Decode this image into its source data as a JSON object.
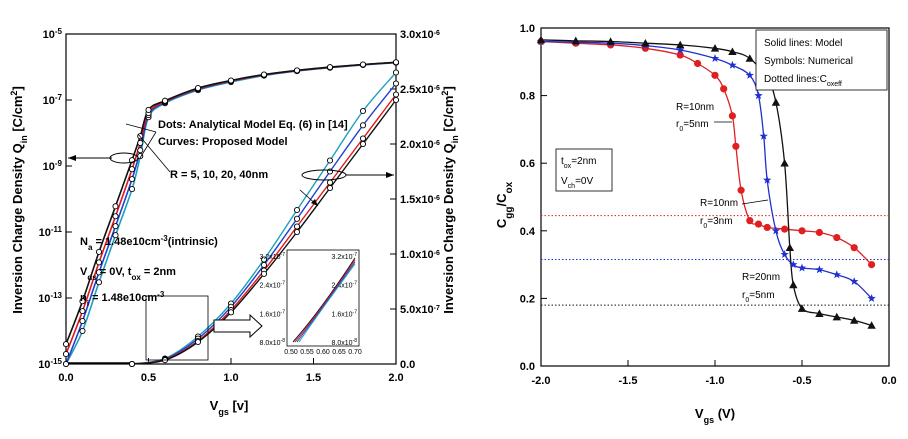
{
  "chart_data": [
    {
      "type": "line",
      "panel": "left",
      "xlabel": "V_gs [v]",
      "ylabel_left": "Inversion Charge Density Q_in [C/cm^2]",
      "ylabel_right": "Inversion Charge Density Q_in [C/cm^2]",
      "xlim": [
        0.0,
        2.0
      ],
      "ylim_left": [
        1e-15,
        1e-05
      ],
      "yscale_left": "log",
      "ylim_right": [
        0,
        3e-06
      ],
      "yscale_right": "linear",
      "x_ticks": [
        "0.0",
        "0.5",
        "1.0",
        "1.5",
        "2.0"
      ],
      "y_ticks_left": [
        "10^-15",
        "10^-13",
        "10^-11",
        "10^-9",
        "10^-7",
        "10^-5"
      ],
      "y_ticks_right": [
        "0.0",
        "5.0x10^-7",
        "1.0x10^-6",
        "1.5x10^-6",
        "2.0x10^-6",
        "2.5x10^-6",
        "3.0x10^-6"
      ],
      "annotations": [
        "Dots: Analytical Model Eq. (6) in [14]",
        "Curves: Proposed Model",
        "R = 5, 10, 20, 40nm",
        "N_a = 1.48e10cm^-3 (intrinsic)",
        "V_ds = 0V, t_ox = 2nm",
        "n_i = 1.48e10cm^-3"
      ],
      "colors": {
        "R=5nm": "#1f9fbf",
        "R=10nm": "#2040d0",
        "R=20nm": "#e01818",
        "R=40nm": "#111111"
      },
      "series_log": [
        {
          "name": "R=5nm",
          "x": [
            0.0,
            0.1,
            0.2,
            0.3,
            0.4,
            0.45,
            0.5,
            0.6,
            0.8,
            1.0,
            1.2,
            1.4,
            1.6,
            1.8,
            2.0
          ],
          "y": [
            5e-16,
            1e-14,
            3e-13,
            8e-12,
            2e-10,
            2e-09,
            3e-08,
            8e-08,
            2e-07,
            3.5e-07,
            5.5e-07,
            7.5e-07,
            9.5e-07,
            1.15e-06,
            1.35e-06
          ]
        },
        {
          "name": "R=10nm",
          "x": [
            0.0,
            0.1,
            0.2,
            0.3,
            0.4,
            0.45,
            0.5,
            0.6,
            0.8,
            1.0,
            1.2,
            1.4,
            1.6,
            1.8,
            2.0
          ],
          "y": [
            1e-15,
            2e-14,
            6e-13,
            1.5e-11,
            4e-10,
            3e-09,
            3.5e-08,
            8.5e-08,
            2.1e-07,
            3.7e-07,
            5.7e-07,
            7.7e-07,
            9.7e-07,
            1.17e-06,
            1.37e-06
          ]
        },
        {
          "name": "R=20nm",
          "x": [
            0.0,
            0.1,
            0.2,
            0.3,
            0.4,
            0.45,
            0.5,
            0.6,
            0.8,
            1.0,
            1.2,
            1.4,
            1.6,
            1.8,
            2.0
          ],
          "y": [
            2e-15,
            4e-14,
            1.2e-12,
            3e-11,
            8e-10,
            5e-09,
            4e-08,
            9e-08,
            2.2e-07,
            3.8e-07,
            5.8e-07,
            7.8e-07,
            9.8e-07,
            1.18e-06,
            1.38e-06
          ]
        },
        {
          "name": "R=40nm",
          "x": [
            0.0,
            0.1,
            0.2,
            0.3,
            0.4,
            0.45,
            0.5,
            0.6,
            0.8,
            1.0,
            1.2,
            1.4,
            1.6,
            1.8,
            2.0
          ],
          "y": [
            4e-15,
            8e-14,
            2.5e-12,
            6e-11,
            1.5e-09,
            8e-09,
            5e-08,
            9.5e-08,
            2.3e-07,
            3.9e-07,
            5.9e-07,
            7.9e-07,
            9.9e-07,
            1.19e-06,
            1.39e-06
          ]
        }
      ],
      "series_linear": [
        {
          "name": "R=5nm",
          "x": [
            0.4,
            0.6,
            0.8,
            1.0,
            1.2,
            1.4,
            1.6,
            1.8,
            2.0
          ],
          "y": [
            0,
            5e-08,
            2.5e-07,
            5.5e-07,
            9.5e-07,
            1.4e-06,
            1.85e-06,
            2.3e-06,
            2.65e-06
          ]
        },
        {
          "name": "R=10nm",
          "x": [
            0.4,
            0.6,
            0.8,
            1.0,
            1.2,
            1.4,
            1.6,
            1.8,
            2.0
          ],
          "y": [
            0,
            4.5e-08,
            2.3e-07,
            5.2e-07,
            9e-07,
            1.32e-06,
            1.75e-06,
            2.17e-06,
            2.55e-06
          ]
        },
        {
          "name": "R=20nm",
          "x": [
            0.4,
            0.6,
            0.8,
            1.0,
            1.2,
            1.4,
            1.6,
            1.8,
            2.0
          ],
          "y": [
            0,
            4e-08,
            2.1e-07,
            4.9e-07,
            8.5e-07,
            1.25e-06,
            1.65e-06,
            2.05e-06,
            2.45e-06
          ]
        },
        {
          "name": "R=40nm",
          "x": [
            0.4,
            0.6,
            0.8,
            1.0,
            1.2,
            1.4,
            1.6,
            1.8,
            2.0
          ],
          "y": [
            0,
            3.5e-08,
            2e-07,
            4.7e-07,
            8.2e-07,
            1.2e-06,
            1.6e-06,
            2e-06,
            2.4e-06
          ]
        }
      ],
      "inset": {
        "x_ticks": [
          "0.50",
          "0.55",
          "0.60",
          "0.65",
          "0.70"
        ],
        "y_ticks_left": [
          "8.0x10^-8",
          "1.6x10^-7",
          "2.4x10^-7",
          "3.2x10^-7"
        ],
        "y_ticks_right": [
          "8.0x10^-8",
          "1.6x10^-7",
          "2.4x10^-7",
          "3.2x10^-7"
        ]
      }
    },
    {
      "type": "line",
      "panel": "right",
      "xlabel": "V_gs (V)",
      "ylabel": "C_gg/C_ox",
      "xlim": [
        -2.0,
        0.0
      ],
      "ylim": [
        0.0,
        1.0
      ],
      "x_ticks": [
        "-2.0",
        "-1.5",
        "-1.0",
        "-0.5",
        "0.0"
      ],
      "y_ticks": [
        "0.0",
        "0.2",
        "0.4",
        "0.6",
        "0.8",
        "1.0"
      ],
      "legend": [
        "Solid lines: Model",
        "Symbols: Numerical",
        "Dotted lines: C_oxeff"
      ],
      "legend_position": "top-right",
      "info_box": [
        "t_ox=2nm",
        "V_ch=0V"
      ],
      "curve_labels": [
        {
          "line1": "R=10nm",
          "line2": "r_0=5nm"
        },
        {
          "line1": "R=10nm",
          "line2": "r_0=3nm"
        },
        {
          "line1": "R=20nm",
          "line2": "r_0=5nm"
        }
      ],
      "series": [
        {
          "name": "R=10nm, r_0=3nm",
          "color": "#e02020",
          "marker": "circle",
          "x": [
            -2.0,
            -1.8,
            -1.6,
            -1.4,
            -1.2,
            -1.1,
            -1.0,
            -0.95,
            -0.9,
            -0.88,
            -0.85,
            -0.8,
            -0.75,
            -0.7,
            -0.6,
            -0.5,
            -0.4,
            -0.3,
            -0.2,
            -0.1
          ],
          "y": [
            0.96,
            0.955,
            0.95,
            0.94,
            0.92,
            0.895,
            0.86,
            0.82,
            0.74,
            0.65,
            0.52,
            0.43,
            0.42,
            0.41,
            0.405,
            0.4,
            0.395,
            0.38,
            0.35,
            0.3
          ],
          "c_oxeff": 0.445
        },
        {
          "name": "R=10nm, r_0=5nm",
          "color": "#2030d0",
          "marker": "star",
          "x": [
            -2.0,
            -1.8,
            -1.6,
            -1.4,
            -1.2,
            -1.0,
            -0.9,
            -0.8,
            -0.75,
            -0.72,
            -0.7,
            -0.65,
            -0.6,
            -0.55,
            -0.5,
            -0.4,
            -0.3,
            -0.2,
            -0.1
          ],
          "y": [
            0.96,
            0.958,
            0.955,
            0.948,
            0.935,
            0.91,
            0.89,
            0.86,
            0.8,
            0.68,
            0.55,
            0.4,
            0.33,
            0.3,
            0.29,
            0.285,
            0.27,
            0.25,
            0.2
          ],
          "c_oxeff": 0.315
        },
        {
          "name": "R=20nm, r_0=5nm",
          "color": "#111111",
          "marker": "triangle",
          "x": [
            -2.0,
            -1.8,
            -1.6,
            -1.4,
            -1.2,
            -1.0,
            -0.9,
            -0.8,
            -0.7,
            -0.65,
            -0.6,
            -0.57,
            -0.55,
            -0.5,
            -0.4,
            -0.3,
            -0.2,
            -0.1
          ],
          "y": [
            0.965,
            0.962,
            0.96,
            0.955,
            0.95,
            0.94,
            0.93,
            0.91,
            0.85,
            0.78,
            0.6,
            0.35,
            0.24,
            0.17,
            0.155,
            0.145,
            0.135,
            0.12
          ],
          "c_oxeff": 0.18
        }
      ]
    }
  ]
}
